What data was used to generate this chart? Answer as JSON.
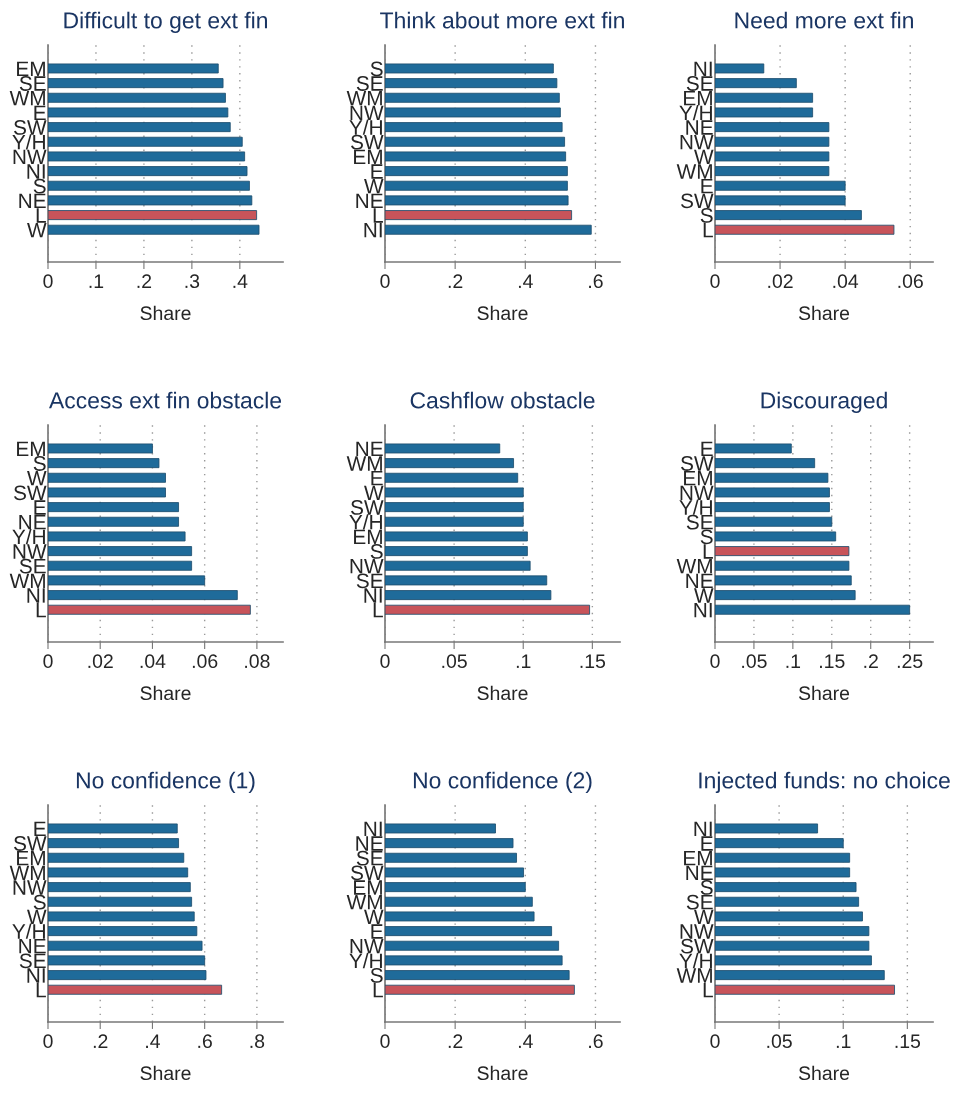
{
  "chart_data": [
    {
      "type": "bar",
      "orientation": "horizontal",
      "title": "Difficult to get ext fin",
      "xlabel": "Share",
      "grid": "x",
      "categories": [
        "EM",
        "SE",
        "WM",
        "E",
        "SW",
        "Y/H",
        "NW",
        "NI",
        "S",
        "NE",
        "L",
        "W"
      ],
      "values": [
        0.355,
        0.365,
        0.37,
        0.375,
        0.38,
        0.405,
        0.41,
        0.415,
        0.42,
        0.425,
        0.435,
        0.44
      ],
      "colors": [
        "#1f6b9a",
        "#1f6b9a",
        "#1f6b9a",
        "#1f6b9a",
        "#1f6b9a",
        "#1f6b9a",
        "#1f6b9a",
        "#1f6b9a",
        "#1f6b9a",
        "#1f6b9a",
        "#c8545a",
        "#1f6b9a"
      ],
      "xlim": [
        0,
        0.49
      ],
      "xticks": [
        0,
        {
          "value": 0.1,
          "label": ".1"
        },
        {
          "value": 0.2,
          "label": ".2"
        },
        {
          "value": 0.3,
          "label": ".3"
        },
        {
          "value": 0.4,
          "label": ".4"
        }
      ]
    },
    {
      "type": "bar",
      "orientation": "horizontal",
      "title": "Think about more ext fin",
      "xlabel": "Share",
      "grid": "x",
      "categories": [
        "S",
        "SE",
        "WM",
        "NW",
        "Y/H",
        "SW",
        "EM",
        "E",
        "W",
        "NE",
        "L",
        "NI"
      ],
      "values": [
        0.48,
        0.49,
        0.497,
        0.5,
        0.505,
        0.512,
        0.515,
        0.52,
        0.52,
        0.522,
        0.532,
        0.588
      ],
      "colors": [
        "#1f6b9a",
        "#1f6b9a",
        "#1f6b9a",
        "#1f6b9a",
        "#1f6b9a",
        "#1f6b9a",
        "#1f6b9a",
        "#1f6b9a",
        "#1f6b9a",
        "#1f6b9a",
        "#c8545a",
        "#1f6b9a"
      ],
      "xlim": [
        0,
        0.67
      ],
      "xticks": [
        0,
        {
          "value": 0.2,
          "label": ".2"
        },
        {
          "value": 0.4,
          "label": ".4"
        },
        {
          "value": 0.6,
          "label": ".6"
        }
      ]
    },
    {
      "type": "bar",
      "orientation": "horizontal",
      "title": "Need more ext fin",
      "xlabel": "Share",
      "grid": "x",
      "categories": [
        "NI",
        "SE",
        "EM",
        "Y/H",
        "NE",
        "NW",
        "W",
        "WM",
        "E",
        "SW",
        "S",
        "L"
      ],
      "values": [
        0.015,
        0.025,
        0.03,
        0.03,
        0.035,
        0.035,
        0.035,
        0.035,
        0.04,
        0.04,
        0.045,
        0.055
      ],
      "colors": [
        "#1f6b9a",
        "#1f6b9a",
        "#1f6b9a",
        "#1f6b9a",
        "#1f6b9a",
        "#1f6b9a",
        "#1f6b9a",
        "#1f6b9a",
        "#1f6b9a",
        "#1f6b9a",
        "#1f6b9a",
        "#c8545a"
      ],
      "xlim": [
        0,
        0.067
      ],
      "xticks": [
        0,
        {
          "value": 0.02,
          "label": ".02"
        },
        {
          "value": 0.04,
          "label": ".04"
        },
        {
          "value": 0.06,
          "label": ".06"
        }
      ]
    },
    {
      "type": "bar",
      "orientation": "horizontal",
      "title": "Access ext fin obstacle",
      "xlabel": "Share",
      "grid": "x",
      "categories": [
        "EM",
        "S",
        "W",
        "SW",
        "E",
        "NE",
        "Y/H",
        "NW",
        "SE",
        "WM",
        "NI",
        "L"
      ],
      "values": [
        0.04,
        0.0425,
        0.045,
        0.045,
        0.05,
        0.05,
        0.0525,
        0.055,
        0.055,
        0.06,
        0.0725,
        0.0775
      ],
      "colors": [
        "#1f6b9a",
        "#1f6b9a",
        "#1f6b9a",
        "#1f6b9a",
        "#1f6b9a",
        "#1f6b9a",
        "#1f6b9a",
        "#1f6b9a",
        "#1f6b9a",
        "#1f6b9a",
        "#1f6b9a",
        "#c8545a"
      ],
      "xlim": [
        0,
        0.09
      ],
      "xticks": [
        0,
        {
          "value": 0.02,
          "label": ".02"
        },
        {
          "value": 0.04,
          "label": ".04"
        },
        {
          "value": 0.06,
          "label": ".06"
        },
        {
          "value": 0.08,
          "label": ".08"
        }
      ]
    },
    {
      "type": "bar",
      "orientation": "horizontal",
      "title": "Cashflow obstacle",
      "xlabel": "Share",
      "grid": "x",
      "categories": [
        "NE",
        "WM",
        "E",
        "W",
        "SW",
        "Y/H",
        "EM",
        "S",
        "NW",
        "SE",
        "NI",
        "L"
      ],
      "values": [
        0.083,
        0.093,
        0.096,
        0.1,
        0.1,
        0.1,
        0.103,
        0.103,
        0.105,
        0.117,
        0.12,
        0.148
      ],
      "colors": [
        "#1f6b9a",
        "#1f6b9a",
        "#1f6b9a",
        "#1f6b9a",
        "#1f6b9a",
        "#1f6b9a",
        "#1f6b9a",
        "#1f6b9a",
        "#1f6b9a",
        "#1f6b9a",
        "#1f6b9a",
        "#c8545a"
      ],
      "xlim": [
        0,
        0.17
      ],
      "xticks": [
        0,
        {
          "value": 0.05,
          "label": ".05"
        },
        {
          "value": 0.1,
          "label": ".1"
        },
        {
          "value": 0.15,
          "label": ".15"
        }
      ]
    },
    {
      "type": "bar",
      "orientation": "horizontal",
      "title": "Discouraged",
      "xlabel": "Share",
      "grid": "x",
      "categories": [
        "E",
        "SW",
        "EM",
        "NW",
        "Y/H",
        "SE",
        "S",
        "L",
        "WM",
        "NE",
        "W",
        "NI"
      ],
      "values": [
        0.098,
        0.128,
        0.145,
        0.147,
        0.147,
        0.15,
        0.155,
        0.172,
        0.172,
        0.175,
        0.18,
        0.25
      ],
      "colors": [
        "#1f6b9a",
        "#1f6b9a",
        "#1f6b9a",
        "#1f6b9a",
        "#1f6b9a",
        "#1f6b9a",
        "#1f6b9a",
        "#c8545a",
        "#1f6b9a",
        "#1f6b9a",
        "#1f6b9a",
        "#1f6b9a"
      ],
      "xlim": [
        0,
        0.28
      ],
      "xticks": [
        0,
        {
          "value": 0.05,
          "label": ".05"
        },
        {
          "value": 0.1,
          "label": ".1"
        },
        {
          "value": 0.15,
          "label": ".15"
        },
        {
          "value": 0.2,
          "label": ".2"
        },
        {
          "value": 0.25,
          "label": ".25"
        }
      ]
    },
    {
      "type": "bar",
      "orientation": "horizontal",
      "title": "No confidence (1)",
      "xlabel": "Share",
      "grid": "x",
      "categories": [
        "E",
        "SW",
        "EM",
        "WM",
        "NW",
        "S",
        "W",
        "Y/H",
        "NE",
        "SE",
        "NI",
        "L"
      ],
      "values": [
        0.495,
        0.5,
        0.52,
        0.535,
        0.545,
        0.55,
        0.56,
        0.57,
        0.59,
        0.6,
        0.605,
        0.665
      ],
      "colors": [
        "#1f6b9a",
        "#1f6b9a",
        "#1f6b9a",
        "#1f6b9a",
        "#1f6b9a",
        "#1f6b9a",
        "#1f6b9a",
        "#1f6b9a",
        "#1f6b9a",
        "#1f6b9a",
        "#1f6b9a",
        "#c8545a"
      ],
      "xlim": [
        0,
        0.9
      ],
      "xticks": [
        0,
        {
          "value": 0.2,
          "label": ".2"
        },
        {
          "value": 0.4,
          "label": ".4"
        },
        {
          "value": 0.6,
          "label": ".6"
        },
        {
          "value": 0.8,
          "label": ".8"
        }
      ]
    },
    {
      "type": "bar",
      "orientation": "horizontal",
      "title": "No confidence (2)",
      "xlabel": "Share",
      "grid": "x",
      "categories": [
        "NI",
        "NE",
        "SE",
        "SW",
        "EM",
        "WM",
        "W",
        "E",
        "NW",
        "Y/H",
        "S",
        "L"
      ],
      "values": [
        0.315,
        0.365,
        0.375,
        0.395,
        0.4,
        0.42,
        0.425,
        0.475,
        0.495,
        0.505,
        0.525,
        0.54
      ],
      "colors": [
        "#1f6b9a",
        "#1f6b9a",
        "#1f6b9a",
        "#1f6b9a",
        "#1f6b9a",
        "#1f6b9a",
        "#1f6b9a",
        "#1f6b9a",
        "#1f6b9a",
        "#1f6b9a",
        "#1f6b9a",
        "#c8545a"
      ],
      "xlim": [
        0,
        0.67
      ],
      "xticks": [
        0,
        {
          "value": 0.2,
          "label": ".2"
        },
        {
          "value": 0.4,
          "label": ".4"
        },
        {
          "value": 0.6,
          "label": ".6"
        }
      ]
    },
    {
      "type": "bar",
      "orientation": "horizontal",
      "title": "Injected funds: no choice",
      "xlabel": "Share",
      "grid": "x",
      "categories": [
        "NI",
        "E",
        "EM",
        "NE",
        "S",
        "SE",
        "W",
        "NW",
        "SW",
        "Y/H",
        "WM",
        "L"
      ],
      "values": [
        0.08,
        0.1,
        0.105,
        0.105,
        0.11,
        0.112,
        0.115,
        0.12,
        0.12,
        0.122,
        0.132,
        0.14
      ],
      "colors": [
        "#1f6b9a",
        "#1f6b9a",
        "#1f6b9a",
        "#1f6b9a",
        "#1f6b9a",
        "#1f6b9a",
        "#1f6b9a",
        "#1f6b9a",
        "#1f6b9a",
        "#1f6b9a",
        "#1f6b9a",
        "#c8545a"
      ],
      "xlim": [
        0,
        0.17
      ],
      "xticks": [
        0,
        {
          "value": 0.05,
          "label": ".05"
        },
        {
          "value": 0.1,
          "label": ".1"
        },
        {
          "value": 0.15,
          "label": ".15"
        }
      ]
    }
  ]
}
